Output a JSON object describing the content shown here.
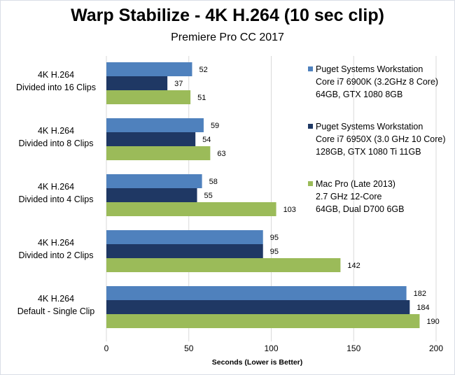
{
  "chart_data": {
    "type": "bar",
    "orientation": "horizontal",
    "title": "Warp Stabilize - 4K H.264 (10 sec clip)",
    "subtitle": "Premiere Pro CC 2017",
    "xlabel": "Seconds  (Lower is Better)",
    "ylabel": "",
    "xlim": [
      0,
      200
    ],
    "xticks": [
      0,
      50,
      100,
      150,
      200
    ],
    "grid": true,
    "legend_position": "right",
    "categories": [
      [
        "4K H.264",
        "Divided into 16 Clips"
      ],
      [
        "4K H.264",
        "Divided into 8 Clips"
      ],
      [
        "4K H.264",
        "Divided into 4 Clips"
      ],
      [
        "4K H.264",
        "Divided into 2 Clips"
      ],
      [
        "4K H.264",
        "Default - Single Clip"
      ]
    ],
    "series": [
      {
        "name": [
          "Puget Systems Workstation",
          "Core i7 6900K (3.2GHz 8 Core)",
          "64GB, GTX 1080 8GB"
        ],
        "color": "#4f81bd",
        "values": [
          52,
          59,
          58,
          95,
          182
        ]
      },
      {
        "name": [
          "Puget Systems Workstation",
          "Core i7 6950X (3.0 GHz 10 Core)",
          "128GB, GTX 1080 Ti 11GB"
        ],
        "color": "#1f3864",
        "values": [
          37,
          54,
          55,
          95,
          184
        ]
      },
      {
        "name": [
          "Mac Pro (Late 2013)",
          "2.7 GHz 12-Core",
          "64GB, Dual D700 6GB"
        ],
        "color": "#9bbb59",
        "values": [
          51,
          63,
          103,
          142,
          190
        ]
      }
    ]
  }
}
